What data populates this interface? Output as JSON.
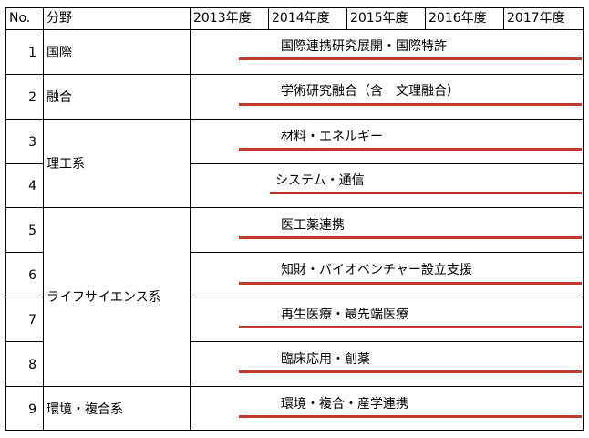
{
  "header": {
    "no": "No.",
    "field": "分野",
    "years": [
      "2013年度",
      "2014年度",
      "2015年度",
      "2016年度",
      "2017年度"
    ]
  },
  "rows": [
    {
      "no": "1",
      "project": "国際連携研究展開・国際特許"
    },
    {
      "no": "2",
      "project": "学術研究融合（含　文理融合）"
    },
    {
      "no": "3",
      "project": "材料・エネルギー"
    },
    {
      "no": "4",
      "project": "システム・通信"
    },
    {
      "no": "5",
      "project": "医工薬連携"
    },
    {
      "no": "6",
      "project": "知財・バイオベンチャー設立支援"
    },
    {
      "no": "7",
      "project": "再生医療・最先端医療"
    },
    {
      "no": "8",
      "project": "臨床応用・創薬"
    },
    {
      "no": "9",
      "project": "環境・複合・産学連携"
    }
  ],
  "fields": [
    "国際",
    "融合",
    "理工系",
    "ライフサイエンス系",
    "環境・複合系"
  ],
  "colors": {
    "bar": "#c0392b"
  }
}
